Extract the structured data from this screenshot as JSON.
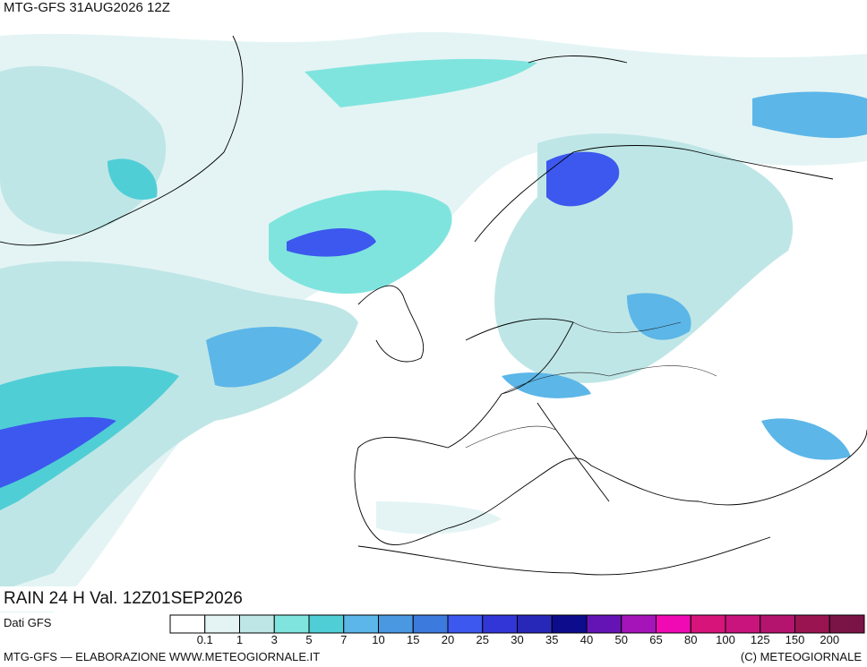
{
  "header": {
    "title": "MTG-GFS 31AUG2026 12Z"
  },
  "map": {
    "label": "RAIN 24 H Val. 12Z01SEP2026"
  },
  "legend": {
    "source": "Dati GFS",
    "colors": [
      "#ffffff",
      "#e4f4f4",
      "#bfe6e6",
      "#80e4de",
      "#50ced6",
      "#5cb6e8",
      "#4a98e0",
      "#3c7ade",
      "#3c58ee",
      "#3236d6",
      "#2828b8",
      "#0c0c8c",
      "#6414b4",
      "#a414b8",
      "#f00ab4",
      "#d6147a",
      "#c8147c",
      "#b4146e",
      "#9a1452",
      "#7a1446"
    ],
    "labels": [
      "0.1",
      "1",
      "3",
      "5",
      "7",
      "10",
      "15",
      "20",
      "25",
      "30",
      "35",
      "40",
      "50",
      "65",
      "80",
      "100",
      "125",
      "150",
      "200"
    ]
  },
  "footer": {
    "left": "MTG-GFS — ELABORAZIONE WWW.METEOGIORNALE.IT",
    "right": "(C) METEOGIORNALE"
  }
}
